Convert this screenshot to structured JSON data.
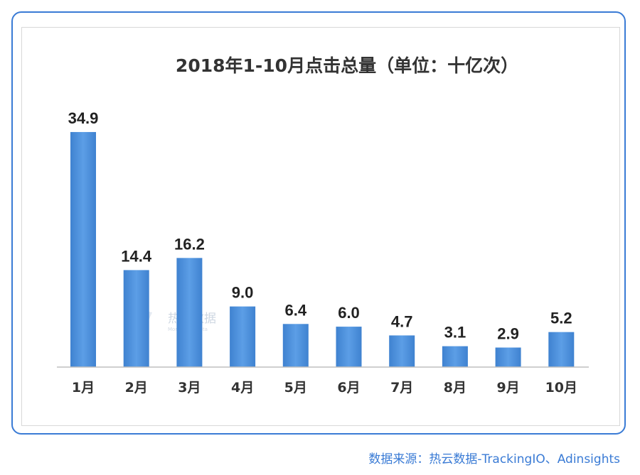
{
  "chart_data": {
    "type": "bar",
    "title": "2018年1-10月点击总量（单位：十亿次）",
    "categories": [
      "1月",
      "2月",
      "3月",
      "4月",
      "5月",
      "6月",
      "7月",
      "8月",
      "9月",
      "10月"
    ],
    "values": [
      34.9,
      14.4,
      16.2,
      9.0,
      6.4,
      6.0,
      4.7,
      3.1,
      2.9,
      5.2
    ],
    "value_labels": [
      "34.9",
      "14.4",
      "16.2",
      "9.0",
      "6.4",
      "6.0",
      "4.7",
      "3.1",
      "2.9",
      "5.2"
    ],
    "ylim": [
      0,
      35
    ],
    "grid": false,
    "legend": "none",
    "bar_color": "#4a8fd9"
  },
  "watermark": {
    "name": "热云数据",
    "tagline": "More Than Data"
  },
  "source": {
    "text": "数据来源：热云数据-TrackingIO、Adinsights"
  },
  "colors": {
    "frame": "#3a7bd5",
    "source": "#3a7bd5"
  }
}
